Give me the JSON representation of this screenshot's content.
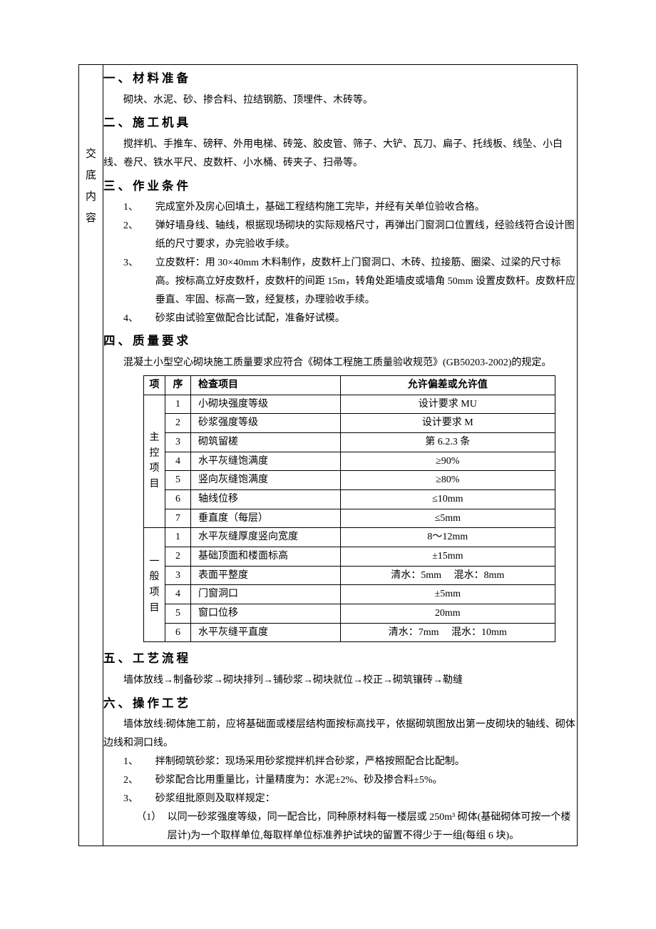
{
  "side_labels": [
    "交",
    "底",
    "内",
    "容"
  ],
  "sections": {
    "s1": {
      "num": "一、",
      "title": "材料准备",
      "para": "砌块、水泥、砂、掺合料、拉结钢筋、顶埋件、木砖等。"
    },
    "s2": {
      "num": "二、",
      "title": "施工机具",
      "para": "搅拌机、手推车、磅秤、外用电梯、砖笼、胶皮管、筛子、大铲、瓦刀、扁子、托线板、线坠、小白线、卷尺、铁水平尺、皮数杆、小水桶、砖夹子、扫帚等。"
    },
    "s3": {
      "num": "三、",
      "title": "作业条件",
      "items": [
        {
          "n": "1、",
          "t": "完成室外及房心回填土，基础工程结构施工完毕，并经有关单位验收合格。"
        },
        {
          "n": "2、",
          "t": "弹好墙身线、轴线，根据现场砌块的实际规格尺寸，再弹出门窗洞口位置线，经验线符合设计图纸的尺寸要求，办完验收手续。"
        },
        {
          "n": "3、",
          "t": "立皮数杆：用 30×40mm 木料制作，皮数杆上门窗洞口、木砖、拉接筋、圈梁、过梁的尺寸标高。按标高立好皮数杄，皮数杆的间距 15m，转角处距墙皮或墙角 50mm 设置皮数杆。皮数杆应垂直、牢固、标高一致，经复核，办理验收手续。"
        },
        {
          "n": "4、",
          "t": "砂浆由试验室做配合比试配，准备好试模。"
        }
      ]
    },
    "s4": {
      "num": "四、",
      "title": "质量要求",
      "para": "混凝土小型空心砌块施工质量要求应符合《砌体工程施工质量验收规范》(GB50203-2002)的规定。"
    },
    "s5": {
      "num": "五、",
      "title": "工艺流程",
      "para": "墙体放线→制备砂浆→砌块排列→铺砂浆→砌块就位→校正→砌筑镶砖→勒缝"
    },
    "s6": {
      "num": "六、",
      "title": "操作工艺",
      "para": "墙体放线:砌体施工前，应将基础面或楼层结构面按标高找平，依据砌筑图放出第一皮砌块的轴线、砌体边线和洞口线。",
      "items": [
        {
          "n": "1、",
          "t": "拌制砌筑砂浆：现场采用砂浆搅拌机拌合砂浆，严格按照配合比配制。"
        },
        {
          "n": "2、",
          "t": "砂浆配合比用重量比，计量精度为：水泥±2%、砂及掺合料±5%。"
        },
        {
          "n": "3、",
          "t": "砂浆组批原则及取样规定："
        }
      ],
      "sub": [
        {
          "n": "（1）",
          "t": "以同一砂浆强度等级，同一配合比，同种原材料每一楼层或 250m³ 砌体(基础砌体可按一个楼层计)为一个取样单位,每取样单位标准养护试块的留置不得少于一组(每组 6 块)。"
        }
      ]
    }
  },
  "qtable": {
    "headers": {
      "proj": "项",
      "seq": "序",
      "item": "检查项目",
      "val": "允许偏差或允许值"
    },
    "groups": [
      {
        "label": "主控项目",
        "rows": [
          {
            "seq": "1",
            "item": "小砌块强度等级",
            "val": "设计要求 MU"
          },
          {
            "seq": "2",
            "item": "砂浆强度等级",
            "val": "设计要求 M"
          },
          {
            "seq": "3",
            "item": "砌筑留槎",
            "val": "第 6.2.3 条"
          },
          {
            "seq": "4",
            "item": "水平灰缝饱满度",
            "val": "≥90%"
          },
          {
            "seq": "5",
            "item": "竖向灰缝饱满度",
            "val": "≥80%"
          },
          {
            "seq": "6",
            "item": "轴线位移",
            "val": "≤10mm"
          },
          {
            "seq": "7",
            "item": "垂直度（每层）",
            "val": "≤5mm"
          }
        ]
      },
      {
        "label": "一般项目",
        "rows": [
          {
            "seq": "1",
            "item": "水平灰缝厚度竖向宽度",
            "val": "8～12mm"
          },
          {
            "seq": "2",
            "item": "基础顶面和楼面标高",
            "val": "±15mm"
          },
          {
            "seq": "3",
            "item": "表面平整度",
            "val": "清水：5mm  混水：8mm"
          },
          {
            "seq": "4",
            "item": "门窗洞口",
            "val": "±5mm"
          },
          {
            "seq": "5",
            "item": "窗口位移",
            "val": "20mm"
          },
          {
            "seq": "6",
            "item": "水平灰缝平直度",
            "val": "清水：7mm  混水：10mm"
          }
        ]
      }
    ]
  }
}
